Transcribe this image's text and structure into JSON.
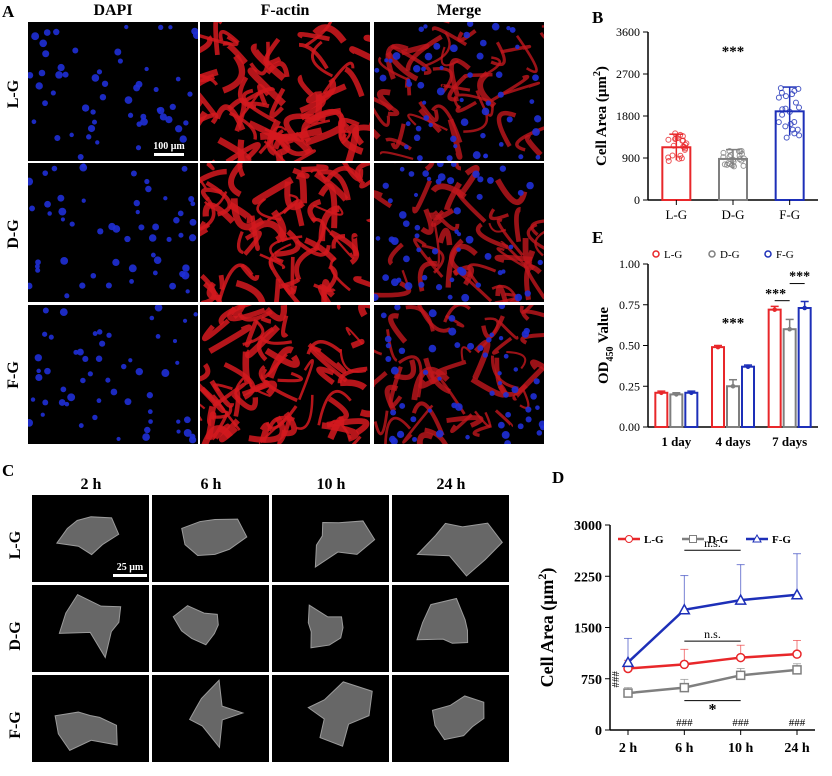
{
  "panel_labels": {
    "a": "A",
    "b": "B",
    "c": "C",
    "d": "D",
    "e": "E"
  },
  "panelA": {
    "columns": [
      "DAPI",
      "F-actin",
      "Merge"
    ],
    "rows": [
      "L-G",
      "D-G",
      "F-G"
    ],
    "scalebar": "100 μm"
  },
  "panelC": {
    "columns": [
      "2 h",
      "6 h",
      "10 h",
      "24 h"
    ],
    "rows": [
      "L-G",
      "D-G",
      "F-G"
    ],
    "scalebar": "25 μm"
  },
  "chart_data": [
    {
      "id": "B",
      "type": "bar",
      "categories": [
        "L-G",
        "D-G",
        "F-G"
      ],
      "values": [
        1130,
        880,
        1900
      ],
      "errors": [
        280,
        200,
        520
      ],
      "colors": [
        "#e8272a",
        "#7f7f7f",
        "#1d2fb8"
      ],
      "ylabel": "Cell Area (μm²)",
      "ylim": [
        0,
        3600
      ],
      "yticks": [
        "0",
        "900",
        "1800",
        "2700",
        "3600"
      ],
      "annotation": "***",
      "grid": false
    },
    {
      "id": "E",
      "type": "bar",
      "categories": [
        "1 day",
        "4 days",
        "7 days"
      ],
      "series": [
        {
          "name": "L-G",
          "values": [
            0.21,
            0.49,
            0.72
          ],
          "errors": [
            0.01,
            0.01,
            0.02
          ],
          "color": "#e8272a"
        },
        {
          "name": "D-G",
          "values": [
            0.2,
            0.25,
            0.6
          ],
          "errors": [
            0.01,
            0.04,
            0.06
          ],
          "color": "#7f7f7f"
        },
        {
          "name": "F-G",
          "values": [
            0.21,
            0.37,
            0.73
          ],
          "errors": [
            0.01,
            0.01,
            0.04
          ],
          "color": "#1d2fb8"
        }
      ],
      "ylabel": "OD450 Value",
      "ylim": [
        0,
        1.0
      ],
      "yticks": [
        "0.00",
        "0.25",
        "0.50",
        "0.75",
        "1.00"
      ],
      "annotations": [
        "***",
        "***",
        "***"
      ],
      "legend": "top",
      "grid": false
    },
    {
      "id": "D",
      "type": "line",
      "categories": [
        "2 h",
        "6 h",
        "10 h",
        "24 h"
      ],
      "series": [
        {
          "name": "L-G",
          "values": [
            900,
            960,
            1060,
            1110
          ],
          "errors": [
            120,
            220,
            180,
            200
          ],
          "color": "#e8272a"
        },
        {
          "name": "D-G",
          "values": [
            540,
            620,
            800,
            880
          ],
          "errors": [
            80,
            120,
            100,
            90
          ],
          "color": "#7f7f7f"
        },
        {
          "name": "F-G",
          "values": [
            990,
            1760,
            1900,
            1980
          ],
          "errors": [
            350,
            500,
            520,
            600
          ],
          "color": "#1d2fb8"
        }
      ],
      "ylabel": "Cell Area (μm²)",
      "ylim": [
        0,
        3000
      ],
      "yticks": [
        "0",
        "750",
        "1500",
        "2250",
        "3000"
      ],
      "annotations": [
        "n.s.",
        "n.s.",
        "*",
        "###",
        "###",
        "###",
        "###"
      ],
      "legend": "top",
      "grid": false
    }
  ]
}
